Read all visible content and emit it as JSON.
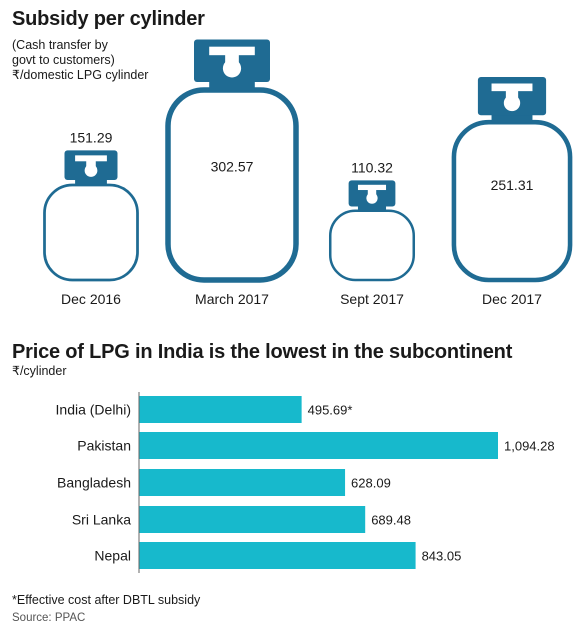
{
  "chart_data": [
    {
      "type": "pictograph",
      "title": "Subsidy per cylinder",
      "subtitle": [
        "(Cash transfer by",
        "govt to customers)",
        "₹/domestic LPG cylinder"
      ],
      "categories": [
        "Dec 2016",
        "March 2017",
        "Sept 2017",
        "Dec 2017"
      ],
      "values": [
        151.29,
        302.57,
        110.32,
        251.31
      ],
      "value_labels": [
        "151.29",
        "302.57",
        "110.32",
        "251.31"
      ],
      "color": "#1f6b93"
    },
    {
      "type": "bar",
      "orientation": "horizontal",
      "title": "Price of LPG in India is the lowest in the subcontinent",
      "unit": "₹/cylinder",
      "categories": [
        "India (Delhi)",
        "Pakistan",
        "Bangladesh",
        "Sri Lanka",
        "Nepal"
      ],
      "values": [
        495.69,
        1094.28,
        628.09,
        689.48,
        843.05
      ],
      "value_labels": [
        "495.69*",
        "1,094.28",
        "628.09",
        "689.48",
        "843.05"
      ],
      "color": "#17b9cc",
      "xlim": [
        0,
        1094.28
      ]
    }
  ],
  "footnote": "*Effective cost after DBTL subsidy",
  "source": "Source: PPAC"
}
